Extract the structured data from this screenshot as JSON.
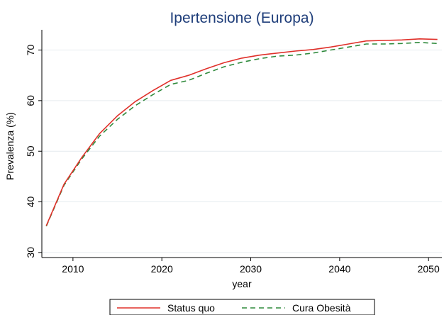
{
  "chart_data": {
    "type": "line",
    "title": "Ipertensione (Europa)",
    "xlabel": "year",
    "ylabel": "Prevalenza (%)",
    "xlim": [
      2006.5,
      2051.5
    ],
    "ylim": [
      29,
      74
    ],
    "xticks": [
      2010,
      2020,
      2030,
      2040,
      2050
    ],
    "yticks": [
      30,
      40,
      50,
      60,
      70
    ],
    "grid": true,
    "legend_position": "bottom",
    "series": [
      {
        "name": "Status quo",
        "color": "#e0302a",
        "dash": "solid",
        "x": [
          2007,
          2009,
          2011,
          2013,
          2015,
          2017,
          2019,
          2021,
          2023,
          2025,
          2027,
          2029,
          2031,
          2033,
          2035,
          2037,
          2039,
          2041,
          2043,
          2045,
          2047,
          2049,
          2051
        ],
        "y": [
          35.3,
          43.5,
          48.8,
          53.5,
          57.0,
          59.8,
          62.0,
          64.0,
          65.0,
          66.3,
          67.5,
          68.4,
          69.0,
          69.4,
          69.8,
          70.1,
          70.6,
          71.2,
          71.8,
          71.9,
          72.0,
          72.2,
          72.1
        ]
      },
      {
        "name": "Cura Obesità",
        "color": "#2f8a3c",
        "dash": "dashed",
        "x": [
          2007,
          2009,
          2011,
          2013,
          2015,
          2017,
          2019,
          2021,
          2023,
          2025,
          2027,
          2029,
          2031,
          2033,
          2035,
          2037,
          2039,
          2041,
          2043,
          2045,
          2047,
          2049,
          2051
        ],
        "y": [
          35.2,
          43.3,
          48.5,
          53.0,
          56.3,
          59.0,
          61.2,
          63.2,
          64.0,
          65.4,
          66.7,
          67.6,
          68.3,
          68.8,
          69.0,
          69.4,
          70.0,
          70.6,
          71.2,
          71.2,
          71.3,
          71.5,
          71.3
        ]
      }
    ]
  }
}
